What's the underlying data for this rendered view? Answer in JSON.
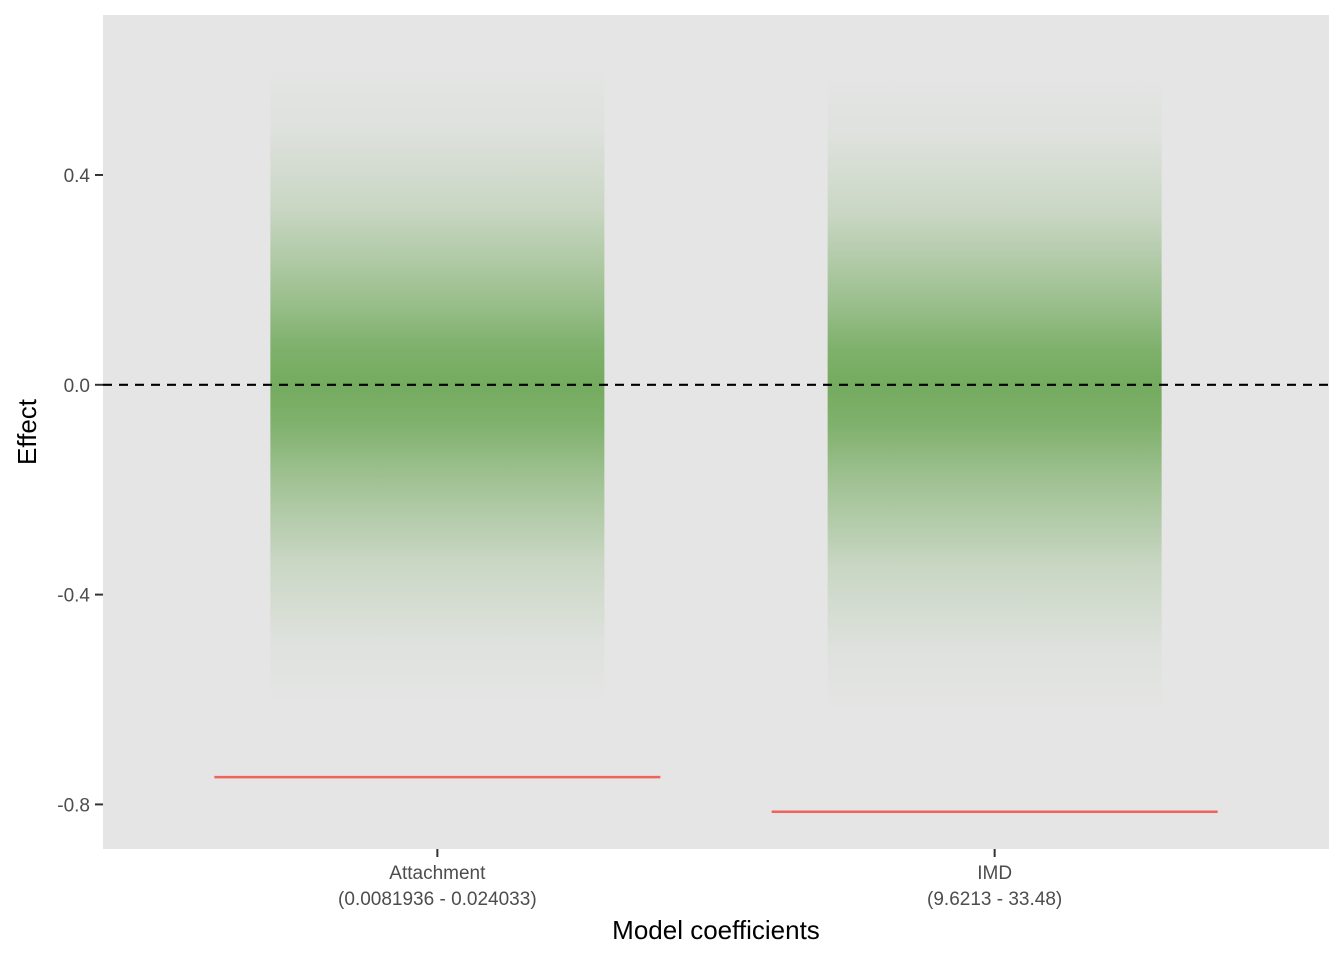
{
  "chart_data": {
    "type": "gradient-interval",
    "xlabel": "Model coefficients",
    "ylabel": "Effect",
    "categories": [
      {
        "name": "Attachment",
        "range_label": "(0.0081936 - 0.024033)",
        "center": 0.0,
        "lower": -0.61,
        "upper": 0.61,
        "marker": -0.748
      },
      {
        "name": "IMD",
        "range_label": "(9.6213 - 33.48)",
        "center": 0.0,
        "lower": -0.63,
        "upper": 0.59,
        "marker": -0.814
      }
    ],
    "y_ticks": [
      0.4,
      0.0,
      -0.4,
      -0.8
    ],
    "y_tick_labels": [
      "0.4",
      "0.0",
      "-0.4",
      "-0.8"
    ],
    "ylim": [
      -0.885,
      0.705
    ],
    "reference_line": 0.0,
    "grid": false,
    "colors": {
      "panel": "#e5e5e5",
      "gradient": "#74ab5f",
      "marker": "#f0635c",
      "reference": "#000000"
    }
  }
}
